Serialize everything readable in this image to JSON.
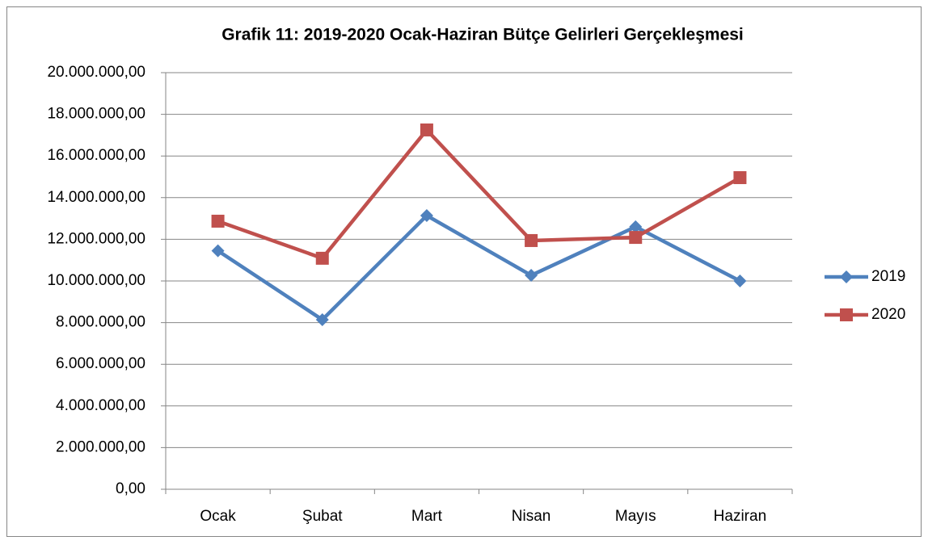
{
  "chart_data": {
    "type": "line",
    "title": "Grafik 11: 2019-2020 Ocak-Haziran Bütçe Gelirleri Gerçekleşmesi",
    "categories": [
      "Ocak",
      "Şubat",
      "Mart",
      "Nisan",
      "Mayıs",
      "Haziran"
    ],
    "series": [
      {
        "name": "2019",
        "color": "#4f81bd",
        "values": [
          11450000,
          8140000,
          13140000,
          10270000,
          12600000,
          10000000
        ]
      },
      {
        "name": "2020",
        "color": "#c0504d",
        "values": [
          12870000,
          11090000,
          17250000,
          11940000,
          12090000,
          14960000
        ]
      }
    ],
    "ylim": [
      0,
      20000000
    ],
    "yticks": [
      {
        "value": 0,
        "label": "0,00"
      },
      {
        "value": 2000000,
        "label": "2.000.000,00"
      },
      {
        "value": 4000000,
        "label": "4.000.000,00"
      },
      {
        "value": 6000000,
        "label": "6.000.000,00"
      },
      {
        "value": 8000000,
        "label": "8.000.000,00"
      },
      {
        "value": 10000000,
        "label": "10.000.000,00"
      },
      {
        "value": 12000000,
        "label": "12.000.000,00"
      },
      {
        "value": 14000000,
        "label": "14.000.000,00"
      },
      {
        "value": 16000000,
        "label": "16.000.000,00"
      },
      {
        "value": 18000000,
        "label": "18.000.000,00"
      },
      {
        "value": 20000000,
        "label": "20.000.000,00"
      }
    ],
    "grid": true,
    "legend": "right"
  }
}
